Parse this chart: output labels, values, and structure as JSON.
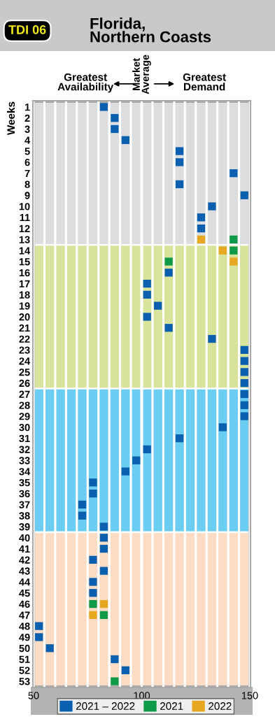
{
  "chart_data": {
    "type": "scatter",
    "orientation": "horizontal",
    "title": "Florida,\nNorthern Coasts",
    "subtitle": "TDI 06",
    "ylabel": "Weeks",
    "categories": [
      "1",
      "2",
      "3",
      "4",
      "5",
      "6",
      "7",
      "8",
      "9",
      "10",
      "11",
      "12",
      "13",
      "14",
      "15",
      "16",
      "17",
      "18",
      "19",
      "20",
      "21",
      "22",
      "23",
      "24",
      "25",
      "26",
      "27",
      "28",
      "29",
      "30",
      "31",
      "32",
      "33",
      "34",
      "35",
      "36",
      "37",
      "38",
      "39",
      "40",
      "41",
      "42",
      "43",
      "44",
      "45",
      "46",
      "47",
      "48",
      "49",
      "50",
      "51",
      "52",
      "53"
    ],
    "series": [
      {
        "name": "2021 – 2022",
        "color": "#0a5fae",
        "values": [
          82.5,
          87.5,
          87.5,
          92.5,
          117.5,
          117.5,
          142.5,
          117.5,
          147.5,
          132.5,
          127.5,
          127.5,
          null,
          null,
          null,
          112.5,
          102.5,
          102.5,
          107.5,
          102.5,
          112.5,
          132.5,
          147.5,
          147.5,
          147.5,
          147.5,
          147.5,
          147.5,
          147.5,
          137.5,
          117.5,
          102.5,
          97.5,
          92.5,
          77.5,
          77.5,
          72.5,
          72.5,
          82.5,
          82.5,
          82.5,
          77.5,
          82.5,
          77.5,
          77.5,
          null,
          null,
          52.5,
          52.5,
          57.5,
          87.5,
          92.5,
          null
        ]
      },
      {
        "name": "2021",
        "color": "#0f9a4a",
        "values": [
          null,
          null,
          null,
          null,
          null,
          null,
          null,
          null,
          null,
          null,
          null,
          null,
          142.5,
          142.5,
          112.5,
          null,
          null,
          null,
          null,
          null,
          null,
          null,
          null,
          null,
          null,
          null,
          null,
          null,
          null,
          null,
          null,
          null,
          null,
          null,
          null,
          null,
          null,
          null,
          null,
          null,
          null,
          null,
          null,
          null,
          null,
          77.5,
          82.5,
          null,
          null,
          null,
          null,
          null,
          87.5
        ]
      },
      {
        "name": "2022",
        "color": "#e6a820",
        "values": [
          null,
          null,
          null,
          null,
          null,
          null,
          null,
          null,
          null,
          null,
          null,
          null,
          127.5,
          137.5,
          142.5,
          null,
          null,
          null,
          null,
          null,
          null,
          null,
          null,
          null,
          null,
          null,
          null,
          null,
          null,
          null,
          null,
          null,
          null,
          null,
          null,
          null,
          null,
          null,
          null,
          null,
          null,
          null,
          null,
          null,
          null,
          82.5,
          77.5,
          null,
          null,
          null,
          null,
          null,
          null
        ]
      }
    ],
    "xlim": [
      50,
      150
    ],
    "xticks": [
      50,
      {
        "value": 55,
        "label": null
      },
      {
        "value": 60,
        "label": null
      },
      {
        "value": 65,
        "label": null
      },
      {
        "value": 70,
        "label": null
      },
      {
        "value": 75,
        "label": null
      },
      {
        "value": 80,
        "label": null
      },
      {
        "value": 85,
        "label": null
      },
      {
        "value": 90,
        "label": null
      },
      {
        "value": 95,
        "label": null
      },
      100,
      {
        "value": 105,
        "label": null
      },
      {
        "value": 110,
        "label": null
      },
      {
        "value": 115,
        "label": null
      },
      {
        "value": 120,
        "label": null
      },
      {
        "value": 125,
        "label": null
      },
      {
        "value": 130,
        "label": null
      },
      {
        "value": 135,
        "label": null
      },
      {
        "value": 140,
        "label": null
      },
      {
        "value": 145,
        "label": null
      },
      150
    ],
    "grid": "x",
    "marker": "square",
    "legend": "bottom",
    "bands": [
      {
        "axis": "y",
        "from": "1",
        "to": "13",
        "color": "#dcdddf"
      },
      {
        "axis": "y",
        "from": "14",
        "to": "26",
        "color": "#d8e39c"
      },
      {
        "axis": "y",
        "from": "27",
        "to": "39",
        "color": "#6bcdf2"
      },
      {
        "axis": "y",
        "from": "40",
        "to": "53",
        "color": "#fcdcc4"
      }
    ],
    "ref_lines": [
      {
        "axis": "x",
        "value": 100,
        "label": "Market\nAverage",
        "color": "#ffffff"
      }
    ],
    "annotations": [
      "Greatest\nAvailability",
      "Greatest\nDemand"
    ]
  }
}
